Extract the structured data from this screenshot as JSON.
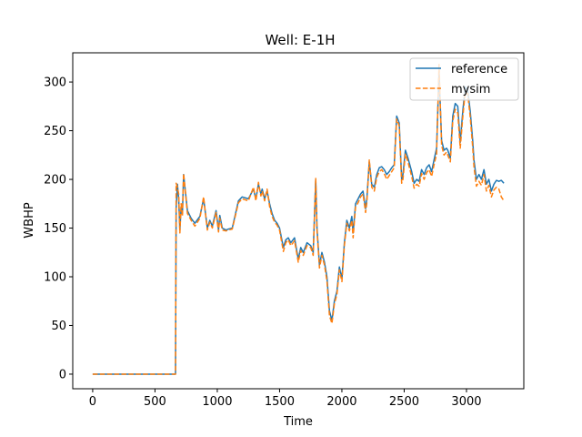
{
  "chart_data": {
    "type": "line",
    "title": "Well: E-1H",
    "xlabel": "Time",
    "ylabel": "WBHP",
    "xlim": [
      -160,
      3460
    ],
    "ylim": [
      -15,
      330
    ],
    "xticks": [
      0,
      500,
      1000,
      1500,
      2000,
      2500,
      3000
    ],
    "yticks": [
      0,
      50,
      100,
      150,
      200,
      250,
      300
    ],
    "grid": false,
    "legend": "top-right",
    "series": [
      {
        "name": "reference",
        "color": "#1f77b4",
        "dash": "solid",
        "x": [
          0,
          100,
          200,
          300,
          400,
          500,
          600,
          665,
          670,
          680,
          690,
          700,
          710,
          720,
          730,
          760,
          790,
          820,
          860,
          890,
          920,
          940,
          960,
          990,
          1010,
          1020,
          1040,
          1070,
          1090,
          1120,
          1170,
          1200,
          1250,
          1290,
          1310,
          1330,
          1350,
          1360,
          1380,
          1400,
          1420,
          1440,
          1460,
          1480,
          1500,
          1530,
          1550,
          1570,
          1590,
          1620,
          1650,
          1670,
          1690,
          1720,
          1750,
          1770,
          1790,
          1800,
          1820,
          1840,
          1860,
          1880,
          1900,
          1920,
          1940,
          1960,
          1980,
          2000,
          2020,
          2040,
          2060,
          2080,
          2090,
          2110,
          2130,
          2150,
          2170,
          2190,
          2200,
          2220,
          2240,
          2260,
          2280,
          2300,
          2320,
          2340,
          2360,
          2380,
          2400,
          2420,
          2440,
          2460,
          2480,
          2490,
          2510,
          2530,
          2560,
          2580,
          2600,
          2620,
          2640,
          2660,
          2680,
          2700,
          2720,
          2740,
          2760,
          2780,
          2800,
          2820,
          2840,
          2850,
          2870,
          2890,
          2910,
          2930,
          2950,
          2970,
          2990,
          3010,
          3030,
          3050,
          3060,
          3080,
          3100,
          3120,
          3140,
          3160,
          3180,
          3200,
          3220,
          3240,
          3260,
          3280,
          3300
        ],
        "y": [
          0,
          0,
          0,
          0,
          0,
          0,
          0,
          0,
          170,
          195,
          180,
          148,
          172,
          165,
          205,
          168,
          160,
          155,
          162,
          180,
          150,
          158,
          152,
          168,
          148,
          163,
          150,
          148,
          149,
          150,
          178,
          182,
          180,
          190,
          180,
          195,
          185,
          190,
          180,
          188,
          175,
          165,
          158,
          155,
          150,
          130,
          138,
          140,
          135,
          140,
          118,
          130,
          125,
          135,
          132,
          125,
          200,
          150,
          112,
          125,
          115,
          100,
          65,
          55,
          75,
          85,
          110,
          98,
          135,
          158,
          150,
          162,
          145,
          175,
          180,
          185,
          188,
          170,
          180,
          218,
          195,
          192,
          205,
          212,
          213,
          210,
          205,
          208,
          212,
          215,
          265,
          258,
          200,
          205,
          230,
          222,
          208,
          196,
          200,
          198,
          210,
          205,
          212,
          215,
          208,
          220,
          232,
          310,
          240,
          230,
          232,
          230,
          222,
          265,
          278,
          275,
          238,
          270,
          295,
          292,
          270,
          240,
          220,
          200,
          205,
          200,
          210,
          195,
          200,
          188,
          195,
          199,
          198,
          199,
          196
        ]
      },
      {
        "name": "mysim",
        "color": "#ff7f0e",
        "dash": "dashed",
        "x": [
          0,
          100,
          200,
          300,
          400,
          500,
          600,
          665,
          670,
          680,
          690,
          700,
          710,
          720,
          730,
          760,
          790,
          820,
          860,
          890,
          920,
          940,
          960,
          990,
          1010,
          1020,
          1040,
          1070,
          1090,
          1120,
          1170,
          1200,
          1250,
          1290,
          1310,
          1330,
          1350,
          1360,
          1380,
          1400,
          1420,
          1440,
          1460,
          1480,
          1500,
          1530,
          1550,
          1570,
          1590,
          1620,
          1650,
          1670,
          1690,
          1720,
          1750,
          1770,
          1790,
          1800,
          1820,
          1840,
          1860,
          1880,
          1900,
          1920,
          1940,
          1960,
          1980,
          2000,
          2020,
          2040,
          2060,
          2080,
          2090,
          2110,
          2130,
          2150,
          2170,
          2190,
          2200,
          2220,
          2240,
          2260,
          2280,
          2300,
          2320,
          2340,
          2360,
          2380,
          2400,
          2420,
          2440,
          2460,
          2480,
          2490,
          2510,
          2530,
          2560,
          2580,
          2600,
          2620,
          2640,
          2660,
          2680,
          2700,
          2720,
          2740,
          2760,
          2780,
          2800,
          2820,
          2840,
          2850,
          2870,
          2890,
          2910,
          2930,
          2950,
          2970,
          2990,
          3010,
          3030,
          3050,
          3060,
          3080,
          3100,
          3120,
          3140,
          3160,
          3180,
          3200,
          3220,
          3240,
          3260,
          3280,
          3300
        ],
        "y": [
          0,
          0,
          0,
          0,
          0,
          0,
          0,
          0,
          196,
          192,
          185,
          145,
          175,
          162,
          206,
          165,
          158,
          152,
          160,
          182,
          148,
          156,
          150,
          166,
          146,
          160,
          148,
          147,
          148,
          149,
          176,
          180,
          178,
          192,
          178,
          197,
          183,
          188,
          178,
          190,
          172,
          162,
          156,
          153,
          148,
          126,
          135,
          138,
          132,
          137,
          115,
          127,
          122,
          132,
          130,
          122,
          201,
          147,
          109,
          122,
          112,
          96,
          60,
          52,
          72,
          82,
          107,
          95,
          132,
          155,
          147,
          158,
          140,
          172,
          176,
          182,
          185,
          166,
          176,
          220,
          192,
          188,
          202,
          208,
          210,
          206,
          200,
          204,
          208,
          212,
          262,
          255,
          196,
          200,
          226,
          218,
          203,
          191,
          195,
          193,
          206,
          200,
          207,
          210,
          203,
          215,
          226,
          318,
          235,
          225,
          228,
          225,
          218,
          260,
          272,
          268,
          232,
          264,
          290,
          288,
          264,
          233,
          213,
          193,
          198,
          194,
          205,
          188,
          194,
          182,
          189,
          192,
          190,
          182,
          178
        ]
      }
    ]
  }
}
